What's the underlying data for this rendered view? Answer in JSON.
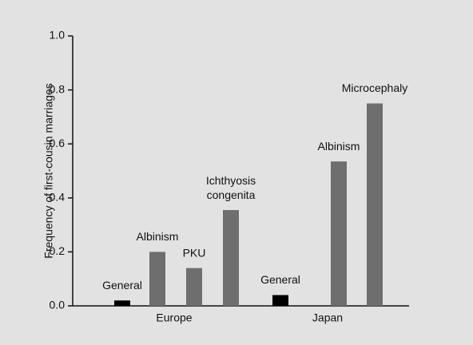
{
  "chart_data": {
    "type": "bar",
    "y_label": "Frequency of first-cousin marriages",
    "ylim": [
      0,
      1.0
    ],
    "yticks": [
      {
        "value": 0,
        "label": "0.0"
      },
      0.2,
      0.4,
      0.6,
      0.8,
      {
        "value": 1,
        "label": "1.0"
      }
    ],
    "groups": [
      {
        "name": "Europe",
        "categories": [
          "General",
          "Albinism",
          "PKU",
          "Ichthyosis congenita"
        ],
        "values": [
          0.02,
          0.2,
          0.14,
          0.355
        ],
        "colors": [
          "#000000",
          "#6e6e6e",
          "#6e6e6e",
          "#6e6e6e"
        ]
      },
      {
        "name": "Japan",
        "categories": [
          "General",
          "Albinism",
          "Microcephaly"
        ],
        "values": [
          0.04,
          0.535,
          0.75
        ],
        "colors": [
          "#000000",
          "#6e6e6e",
          "#6e6e6e"
        ]
      }
    ]
  }
}
